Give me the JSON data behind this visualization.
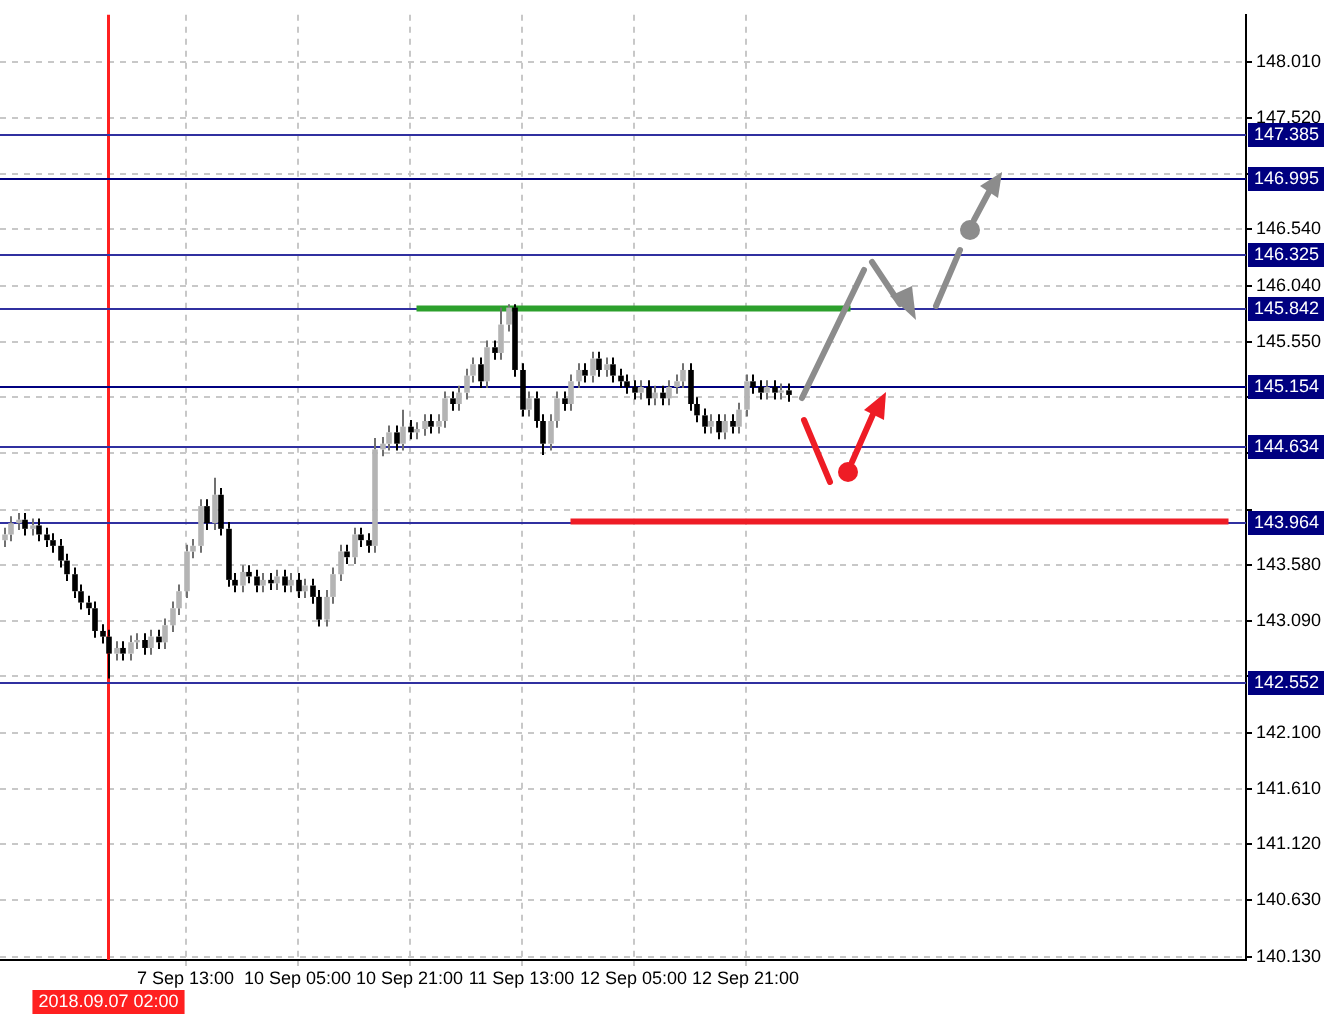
{
  "chart_data": {
    "type": "candlestick",
    "grid": true,
    "categories": [
      null,
      null,
      null,
      null,
      null,
      null,
      null,
      null,
      null,
      null,
      null,
      null,
      null,
      null,
      null,
      "2018.09.07 02:00",
      null,
      null,
      null,
      null,
      null,
      null,
      null,
      null,
      null,
      null,
      "7 Sep 13:00",
      null,
      null,
      null,
      null,
      null,
      null,
      null,
      null,
      null,
      null,
      null,
      null,
      null,
      null,
      null,
      "10 Sep 05:00",
      null,
      null,
      null,
      null,
      null,
      null,
      null,
      null,
      null,
      null,
      null,
      null,
      null,
      null,
      null,
      "10 Sep 21:00",
      null,
      null,
      null,
      null,
      null,
      null,
      null,
      null,
      null,
      null,
      null,
      null,
      null,
      null,
      null,
      "11 Sep 13:00",
      null,
      null,
      null,
      null,
      null,
      null,
      null,
      null,
      null,
      null,
      null,
      null,
      null,
      null,
      null,
      "12 Sep 05:00",
      null,
      null,
      null,
      null,
      null,
      null,
      null,
      null,
      null,
      null,
      null,
      null,
      null,
      null,
      null,
      "12 Sep 21:00",
      null,
      null,
      null,
      null,
      null,
      null,
      null,
      null,
      null,
      null,
      null,
      null,
      null,
      null,
      null,
      null,
      null,
      null,
      null,
      null,
      null,
      null,
      null,
      null,
      null,
      null,
      null,
      null,
      null,
      null,
      null,
      null,
      null,
      null,
      null,
      null,
      null,
      null,
      null,
      null,
      null,
      null,
      null,
      null,
      null,
      null,
      null,
      null,
      null,
      null,
      null,
      null,
      null,
      null,
      null,
      null,
      null,
      null,
      null,
      null,
      null,
      null,
      null,
      null,
      null,
      null,
      null,
      null,
      null,
      null,
      null
    ],
    "ohlc": [
      [
        143.8,
        143.91,
        143.74,
        143.85
      ],
      [
        143.85,
        144.01,
        143.79,
        143.95
      ],
      [
        143.95,
        144.04,
        143.89,
        143.98
      ],
      [
        143.98,
        144.04,
        143.84,
        143.9
      ],
      [
        143.9,
        143.99,
        143.84,
        143.93
      ],
      [
        143.93,
        143.99,
        143.79,
        143.85
      ],
      [
        143.85,
        143.91,
        143.74,
        143.8
      ],
      [
        143.8,
        143.86,
        143.69,
        143.75
      ],
      [
        143.75,
        143.81,
        143.56,
        143.62
      ],
      [
        143.62,
        143.68,
        143.44,
        143.5
      ],
      [
        143.5,
        143.56,
        143.29,
        143.35
      ],
      [
        143.35,
        143.41,
        143.19,
        143.25
      ],
      [
        143.25,
        143.31,
        143.14,
        143.2
      ],
      [
        143.2,
        143.26,
        142.94,
        143.0
      ],
      [
        143.0,
        143.06,
        142.89,
        142.95
      ],
      [
        142.95,
        143.01,
        142.58,
        142.8
      ],
      [
        142.8,
        142.91,
        142.74,
        142.85
      ],
      [
        142.85,
        142.91,
        142.74,
        142.8
      ],
      [
        142.8,
        142.96,
        142.74,
        142.9
      ],
      [
        142.9,
        142.98,
        142.84,
        142.92
      ],
      [
        142.92,
        142.98,
        142.79,
        142.85
      ],
      [
        142.85,
        143.01,
        142.79,
        142.95
      ],
      [
        142.95,
        143.01,
        142.84,
        142.9
      ],
      [
        142.9,
        143.11,
        142.84,
        143.05
      ],
      [
        143.05,
        143.26,
        142.99,
        143.2
      ],
      [
        143.2,
        143.41,
        143.14,
        143.35
      ],
      [
        143.35,
        143.76,
        143.29,
        143.7
      ],
      [
        143.7,
        143.81,
        143.64,
        143.75
      ],
      [
        143.75,
        144.16,
        143.69,
        144.1
      ],
      [
        144.1,
        144.16,
        143.89,
        143.95
      ],
      [
        143.95,
        144.35,
        143.89,
        144.2
      ],
      [
        144.2,
        144.26,
        143.84,
        143.9
      ],
      [
        143.9,
        143.96,
        143.39,
        143.45
      ],
      [
        143.45,
        143.51,
        143.34,
        143.4
      ],
      [
        143.4,
        143.58,
        143.34,
        143.52
      ],
      [
        143.52,
        143.58,
        143.42,
        143.48
      ],
      [
        143.48,
        143.54,
        143.34,
        143.4
      ],
      [
        143.4,
        143.51,
        143.34,
        143.45
      ],
      [
        143.45,
        143.51,
        143.36,
        143.42
      ],
      [
        143.42,
        143.54,
        143.36,
        143.48
      ],
      [
        143.48,
        143.54,
        143.34,
        143.4
      ],
      [
        143.4,
        143.51,
        143.34,
        143.45
      ],
      [
        143.45,
        143.51,
        143.29,
        143.35
      ],
      [
        143.35,
        143.46,
        143.29,
        143.4
      ],
      [
        143.4,
        143.46,
        143.24,
        143.3
      ],
      [
        143.3,
        143.36,
        143.04,
        143.1
      ],
      [
        143.1,
        143.36,
        143.04,
        143.3
      ],
      [
        143.3,
        143.56,
        143.24,
        143.5
      ],
      [
        143.5,
        143.76,
        143.44,
        143.7
      ],
      [
        143.7,
        143.76,
        143.59,
        143.65
      ],
      [
        143.65,
        143.91,
        143.59,
        143.85
      ],
      [
        143.85,
        143.91,
        143.74,
        143.8
      ],
      [
        143.8,
        143.86,
        143.69,
        143.75
      ],
      [
        143.75,
        144.7,
        143.69,
        144.6
      ],
      [
        144.6,
        144.71,
        144.54,
        144.65
      ],
      [
        144.65,
        144.81,
        144.59,
        144.75
      ],
      [
        144.75,
        144.81,
        144.59,
        144.65
      ],
      [
        144.65,
        144.95,
        144.59,
        144.8
      ],
      [
        144.8,
        144.86,
        144.69,
        144.75
      ],
      [
        144.75,
        144.84,
        144.69,
        144.78
      ],
      [
        144.78,
        144.91,
        144.72,
        144.85
      ],
      [
        144.85,
        144.91,
        144.74,
        144.8
      ],
      [
        144.8,
        144.91,
        144.74,
        144.85
      ],
      [
        144.85,
        145.11,
        144.79,
        145.05
      ],
      [
        145.05,
        145.11,
        144.94,
        145.0
      ],
      [
        145.0,
        145.16,
        144.94,
        145.1
      ],
      [
        145.1,
        145.31,
        145.04,
        145.25
      ],
      [
        145.25,
        145.41,
        145.19,
        145.35
      ],
      [
        145.35,
        145.41,
        145.14,
        145.2
      ],
      [
        145.2,
        145.56,
        145.14,
        145.5
      ],
      [
        145.5,
        145.56,
        145.39,
        145.45
      ],
      [
        145.45,
        145.85,
        145.39,
        145.7
      ],
      [
        145.7,
        145.88,
        145.64,
        145.85
      ],
      [
        145.85,
        145.88,
        145.24,
        145.3
      ],
      [
        145.3,
        145.36,
        144.89,
        144.95
      ],
      [
        144.95,
        145.11,
        144.89,
        145.05
      ],
      [
        145.05,
        145.11,
        144.79,
        144.85
      ],
      [
        144.85,
        144.91,
        144.55,
        144.65
      ],
      [
        144.65,
        144.91,
        144.59,
        144.85
      ],
      [
        144.85,
        145.11,
        144.79,
        145.05
      ],
      [
        145.05,
        145.11,
        144.94,
        145.0
      ],
      [
        145.0,
        145.26,
        144.94,
        145.2
      ],
      [
        145.2,
        145.36,
        145.14,
        145.3
      ],
      [
        145.3,
        145.36,
        145.19,
        145.25
      ],
      [
        145.25,
        145.46,
        145.19,
        145.4
      ],
      [
        145.4,
        145.46,
        145.24,
        145.3
      ],
      [
        145.3,
        145.41,
        145.24,
        145.35
      ],
      [
        145.35,
        145.41,
        145.19,
        145.25
      ],
      [
        145.25,
        145.31,
        145.14,
        145.2
      ],
      [
        145.2,
        145.26,
        145.09,
        145.15
      ],
      [
        145.15,
        145.21,
        145.04,
        145.1
      ],
      [
        145.1,
        145.21,
        145.04,
        145.15
      ],
      [
        145.15,
        145.21,
        144.99,
        145.05
      ],
      [
        145.05,
        145.16,
        144.99,
        145.1
      ],
      [
        145.1,
        145.16,
        144.99,
        145.05
      ],
      [
        145.05,
        145.21,
        144.99,
        145.15
      ],
      [
        145.15,
        145.26,
        145.09,
        145.2
      ],
      [
        145.2,
        145.36,
        145.14,
        145.3
      ],
      [
        145.3,
        145.36,
        144.94,
        145.0
      ],
      [
        145.0,
        145.06,
        144.84,
        144.9
      ],
      [
        144.9,
        144.96,
        144.74,
        144.8
      ],
      [
        144.8,
        144.91,
        144.74,
        144.85
      ],
      [
        144.85,
        144.91,
        144.69,
        144.75
      ],
      [
        144.75,
        144.91,
        144.69,
        144.85
      ],
      [
        144.85,
        144.91,
        144.74,
        144.8
      ],
      [
        144.8,
        145.01,
        144.74,
        144.95
      ],
      [
        144.95,
        145.26,
        144.89,
        145.2
      ],
      [
        145.2,
        145.26,
        145.09,
        145.15
      ],
      [
        145.15,
        145.21,
        145.04,
        145.1
      ],
      [
        145.1,
        145.21,
        145.04,
        145.15
      ],
      [
        145.15,
        145.21,
        145.04,
        145.1
      ],
      [
        145.1,
        145.18,
        145.04,
        145.12
      ],
      [
        145.12,
        145.18,
        145.02,
        145.08
      ],
      null,
      null,
      null,
      null,
      null,
      null,
      null,
      null,
      null,
      null,
      null,
      null,
      null,
      null,
      null,
      null,
      null,
      null,
      null,
      null,
      null,
      null,
      null,
      null,
      null,
      null,
      null,
      null,
      null,
      null,
      null,
      null,
      null,
      null,
      null,
      null,
      null,
      null,
      null,
      null,
      null,
      null,
      null,
      null,
      null,
      null,
      null,
      null,
      null,
      null,
      null,
      null,
      null,
      null,
      null,
      null,
      null,
      null,
      null,
      null,
      null,
      null,
      null,
      null,
      null
    ],
    "series": [
      {
        "type": "line",
        "color": "#2ca02c",
        "values": [
          null,
          null,
          null,
          null,
          null,
          null,
          null,
          null,
          null,
          null,
          null,
          null,
          null,
          null,
          null,
          null,
          null,
          null,
          null,
          null,
          null,
          null,
          null,
          null,
          null,
          null,
          null,
          null,
          null,
          null,
          null,
          null,
          null,
          null,
          null,
          null,
          null,
          null,
          null,
          null,
          null,
          null,
          null,
          null,
          null,
          null,
          null,
          null,
          null,
          null,
          null,
          null,
          null,
          null,
          null,
          null,
          null,
          null,
          null,
          145.842,
          null,
          null,
          null,
          null,
          null,
          null,
          null,
          null,
          null,
          null,
          null,
          null,
          null,
          null,
          null,
          null,
          null,
          null,
          null,
          null,
          null,
          null,
          null,
          null,
          null,
          null,
          null,
          null,
          null,
          null,
          null,
          null,
          null,
          null,
          null,
          null,
          null,
          null,
          null,
          null,
          null,
          null,
          null,
          null,
          null,
          null,
          null,
          null,
          null,
          null,
          null,
          null,
          null,
          null,
          null,
          null,
          null,
          null,
          null,
          null,
          null,
          145.842,
          null,
          null,
          null,
          null,
          null,
          null,
          null,
          null,
          null,
          null,
          null,
          null,
          null,
          null,
          null,
          null,
          null,
          null,
          null,
          null,
          null,
          null,
          null,
          null,
          null,
          null,
          null,
          null,
          null,
          null,
          null,
          null,
          null,
          null,
          null,
          null,
          null,
          null,
          null,
          null,
          null,
          null,
          null,
          null,
          null,
          null,
          null,
          null,
          null,
          null,
          null,
          null,
          null,
          null,
          null,
          null
        ]
      },
      {
        "type": "line",
        "color": "#ee1c25",
        "values": [
          null,
          null,
          null,
          null,
          null,
          null,
          null,
          null,
          null,
          null,
          null,
          null,
          null,
          null,
          null,
          null,
          null,
          null,
          null,
          null,
          null,
          null,
          null,
          null,
          null,
          null,
          null,
          null,
          null,
          null,
          null,
          null,
          null,
          null,
          null,
          null,
          null,
          null,
          null,
          null,
          null,
          null,
          null,
          null,
          null,
          null,
          null,
          null,
          null,
          null,
          null,
          null,
          null,
          null,
          null,
          null,
          null,
          null,
          null,
          null,
          null,
          null,
          null,
          null,
          null,
          null,
          null,
          null,
          null,
          null,
          null,
          null,
          null,
          null,
          null,
          null,
          null,
          null,
          null,
          null,
          null,
          143.964,
          null,
          null,
          null,
          null,
          null,
          null,
          null,
          null,
          null,
          null,
          null,
          null,
          null,
          null,
          null,
          null,
          null,
          null,
          null,
          null,
          null,
          null,
          null,
          null,
          null,
          null,
          null,
          null,
          null,
          null,
          null,
          null,
          null,
          null,
          null,
          null,
          null,
          null,
          null,
          null,
          null,
          null,
          null,
          null,
          null,
          null,
          null,
          null,
          null,
          null,
          null,
          null,
          null,
          null,
          null,
          null,
          null,
          null,
          null,
          null,
          null,
          null,
          null,
          null,
          null,
          null,
          null,
          null,
          null,
          null,
          null,
          null,
          null,
          null,
          null,
          null,
          null,
          null,
          null,
          null,
          null,
          null,
          null,
          null,
          null,
          null,
          null,
          null,
          null,
          null,
          null,
          null,
          null,
          143.964,
          null,
          null
        ]
      }
    ],
    "ylim": [
      140.1,
      148.43
    ],
    "yticks": [
      {
        "value": 148.01,
        "label": "148.010"
      },
      {
        "value": 147.52,
        "label": "147.520"
      },
      {
        "value": 147.03,
        "label": null
      },
      {
        "value": 146.54,
        "label": "146.540"
      },
      {
        "value": 146.04,
        "label": "146.040"
      },
      {
        "value": 145.55,
        "label": "145.550"
      },
      {
        "value": 145.06,
        "label": null
      },
      {
        "value": 144.57,
        "label": null
      },
      {
        "value": 144.07,
        "label": null
      },
      {
        "value": 143.58,
        "label": "143.580"
      },
      {
        "value": 143.09,
        "label": "143.090"
      },
      {
        "value": 142.6,
        "label": null
      },
      {
        "value": 142.1,
        "label": "142.100"
      },
      {
        "value": 141.61,
        "label": "141.610"
      },
      {
        "value": 141.12,
        "label": "141.120"
      },
      {
        "value": 140.63,
        "label": "140.630"
      },
      {
        "value": 140.13,
        "label": "140.130"
      }
    ],
    "ref_lines": [
      {
        "axis": "x",
        "value": "2018.09.07 02:00",
        "color": "#ff2020"
      },
      {
        "axis": "y",
        "value": 147.385,
        "label": "147.385",
        "color": "#3030a0"
      },
      {
        "axis": "y",
        "value": 146.995,
        "label": "146.995",
        "color": "#000080"
      },
      {
        "axis": "y",
        "value": 146.325,
        "label": "146.325",
        "color": "#3030a0"
      },
      {
        "axis": "y",
        "value": 145.842,
        "label": "145.842",
        "color": "#3030a0"
      },
      {
        "axis": "y",
        "value": 145.154,
        "label": "145.154",
        "color": "#000080"
      },
      {
        "axis": "y",
        "value": 144.634,
        "label": "144.634",
        "color": "#3030a0"
      },
      {
        "axis": "y",
        "value": 143.964,
        "label": "143.964",
        "color": "#3030a0"
      },
      {
        "axis": "y",
        "value": 142.552,
        "label": "142.552",
        "color": "#3030a0"
      }
    ]
  }
}
